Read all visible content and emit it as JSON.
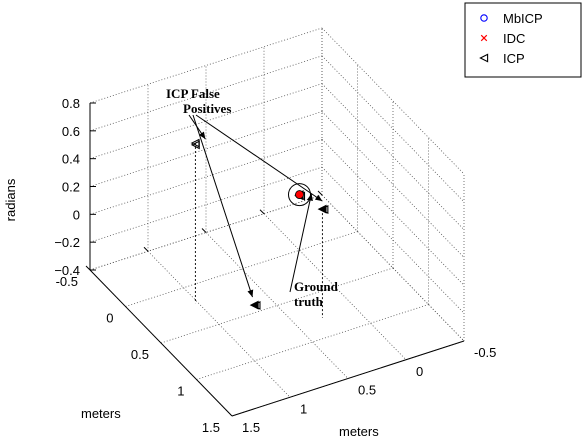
{
  "chart_data": {
    "type": "scatter",
    "projection": "3d",
    "xlabel": "meters",
    "ylabel": "meters",
    "zlabel": "radians",
    "xlim": [
      -0.5,
      1.5
    ],
    "ylim": [
      -0.5,
      1.5
    ],
    "zlim": [
      -0.4,
      0.8
    ],
    "x_ticks": [
      "-0.5",
      "0",
      "0.5",
      "1",
      "1.5"
    ],
    "y_ticks": [
      "-0.5",
      "0",
      "0.5",
      "1",
      "1.5"
    ],
    "z_ticks": [
      "−0.4",
      "−0.2",
      "0",
      "0.2",
      "0.4",
      "0.6",
      "0.8"
    ],
    "x_tick_values": [
      -0.5,
      0,
      0.5,
      1,
      1.5
    ],
    "y_tick_values": [
      -0.5,
      0,
      0.5,
      1,
      1.5
    ],
    "z_tick_values": [
      -0.4,
      -0.2,
      0,
      0.2,
      0.4,
      0.6,
      0.8
    ],
    "grid": true,
    "legend_position": "top-right",
    "series": [
      {
        "name": "MbICP",
        "marker": "circle",
        "color": "#0000ff",
        "points": [
          [
            0.0,
            0.0,
            0.0
          ]
        ]
      },
      {
        "name": "IDC",
        "marker": "x",
        "color": "#ff0000",
        "points": [
          [
            0.0,
            0.0,
            0.0
          ],
          [
            0.01,
            0.0,
            0.0
          ]
        ]
      },
      {
        "name": "ICP",
        "marker": "triangle-left",
        "color": "#000000",
        "points": [
          [
            0.0,
            0.0,
            0.0
          ],
          [
            0.01,
            0.01,
            0.0
          ],
          [
            0.02,
            0.0,
            0.0
          ],
          [
            1.0,
            1.0,
            0.0
          ],
          [
            1.01,
            0.99,
            0.0
          ],
          [
            0.78,
            0.28,
            0.38
          ],
          [
            0.79,
            0.27,
            0.38
          ],
          [
            0.2,
            1.02,
            0.75
          ],
          [
            0.22,
            1.03,
            0.75
          ]
        ]
      }
    ],
    "annotations": [
      {
        "id": "icp-false-positives",
        "lines": [
          "ICP False",
          "Positives"
        ]
      },
      {
        "id": "ground-truth",
        "lines": [
          "Ground",
          "truth"
        ]
      }
    ]
  }
}
